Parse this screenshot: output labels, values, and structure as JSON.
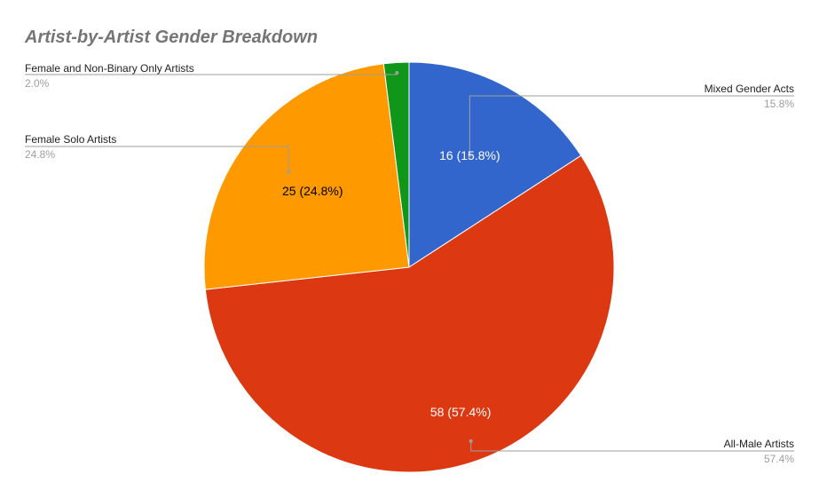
{
  "chart_data": {
    "type": "pie",
    "title": "Artist-by-Artist Gender Breakdown",
    "slices": [
      {
        "label": "Mixed Gender Acts",
        "value": 16,
        "percent_label": "15.8%",
        "inner_label": "16 (15.8%)",
        "color": "#3366cc",
        "text_color": "#ffffff"
      },
      {
        "label": "All-Male Artists",
        "value": 58,
        "percent_label": "57.4%",
        "inner_label": "58 (57.4%)",
        "color": "#dc3912",
        "text_color": "#ffffff"
      },
      {
        "label": "Female Solo Artists",
        "value": 25,
        "percent_label": "24.8%",
        "inner_label": "25 (24.8%)",
        "color": "#ff9900",
        "text_color": "#000000"
      },
      {
        "label": "Female and Non-Binary Only Artists",
        "value": 2,
        "percent_label": "2.0%",
        "inner_label": "",
        "color": "#109618",
        "text_color": "#ffffff"
      }
    ],
    "legend": "labeled"
  }
}
